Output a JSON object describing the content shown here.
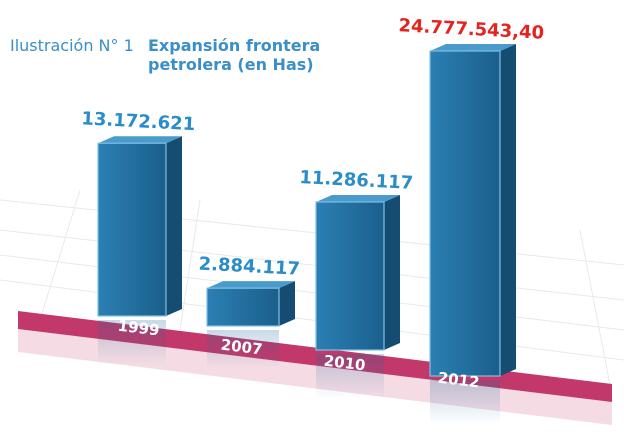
{
  "chart_data": {
    "type": "bar3d",
    "figure_label": "Ilustración N° 1",
    "title": "Expansión frontera petrolera (en Has)",
    "categories": [
      "1999",
      "2007",
      "2010",
      "2012"
    ],
    "values": [
      13172621,
      2884117,
      11286117,
      24777543.4
    ],
    "value_labels": [
      "13.172.621",
      "2.884.117",
      "11.286.117",
      "24.777.543,40"
    ],
    "color": "#1f6b9c",
    "value_label_colors": [
      "#2a8cc8",
      "#2a8cc8",
      "#2a8cc8",
      "#e3241f"
    ],
    "band_color": "#c2386a"
  }
}
